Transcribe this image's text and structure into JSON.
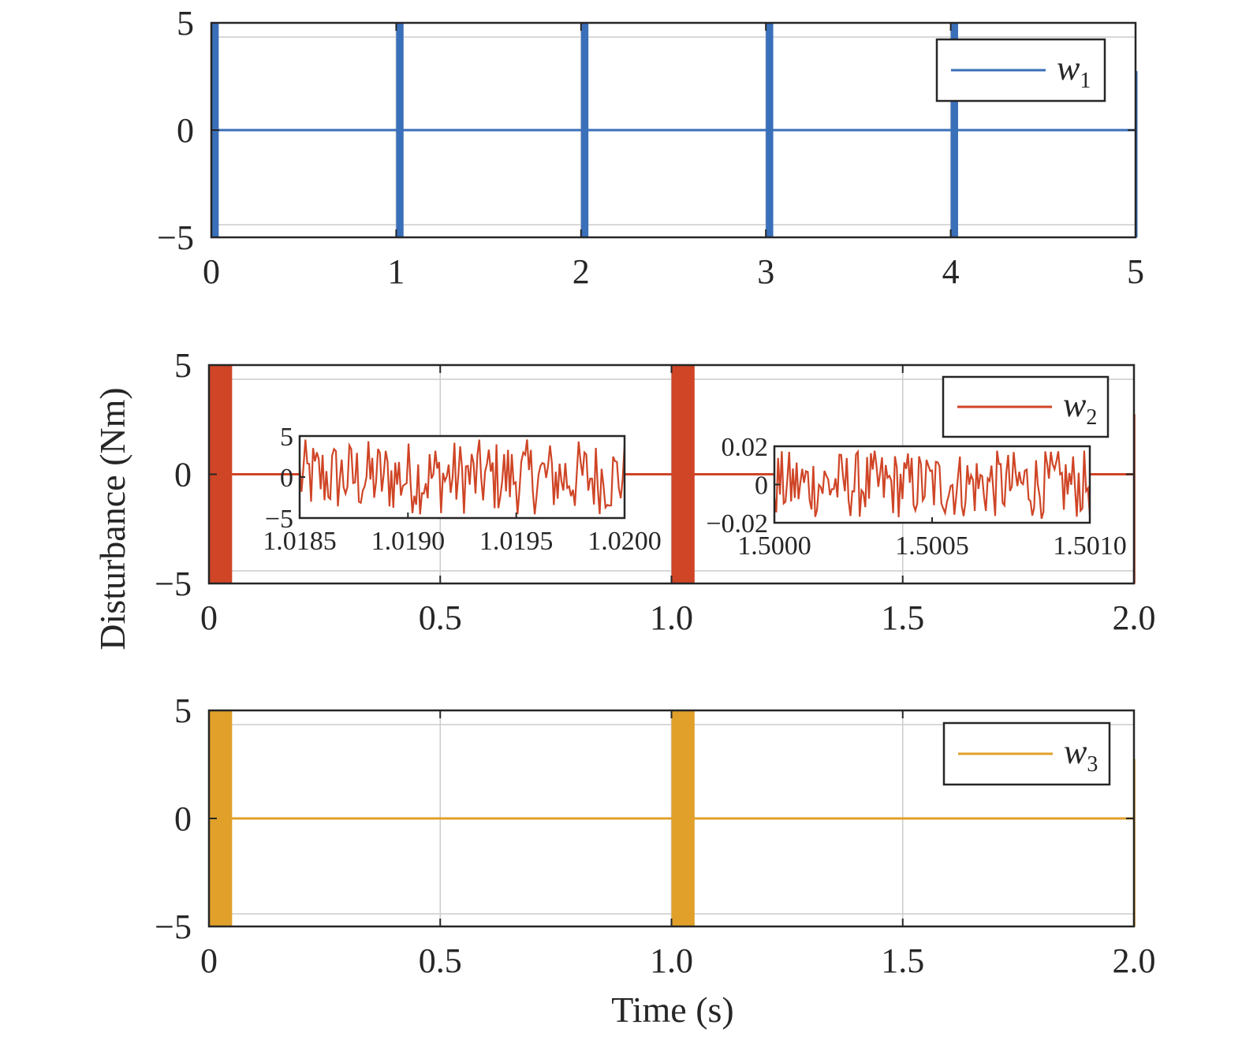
{
  "colors": {
    "w1": "#3a6fba",
    "w2": "#cf4526",
    "w3": "#e0a02a",
    "grid": "#cccccc",
    "axis": "#262626"
  },
  "figure": {
    "ylabel": "Disturbance (Nm)",
    "xlabel": "Time (s)"
  },
  "chart_data": [
    {
      "type": "line",
      "id": "w1",
      "legend": {
        "main": "w",
        "sub": "1",
        "location": "top-right"
      },
      "xlim": [
        0,
        5
      ],
      "ylim": [
        -5,
        5
      ],
      "xticks": [
        0,
        1,
        2,
        3,
        4,
        5
      ],
      "xtick_labels": [
        "0",
        "1",
        "2",
        "3",
        "4",
        "5"
      ],
      "yticks": [
        -5,
        0,
        5
      ],
      "ytick_labels": [
        "−5",
        "0",
        "5"
      ],
      "grid": true,
      "amplitude": 5,
      "burst_starts": [
        0,
        1,
        2,
        3,
        4,
        5
      ],
      "burst_width": 0.04,
      "baseline": 0,
      "series": [
        {
          "name": "w1"
        }
      ]
    },
    {
      "type": "line",
      "id": "w2",
      "legend": {
        "main": "w",
        "sub": "2",
        "location": "top-right"
      },
      "xlim": [
        0,
        2
      ],
      "ylim": [
        -5,
        5
      ],
      "xticks": [
        0,
        0.5,
        1.0,
        1.5,
        2.0
      ],
      "xtick_labels": [
        "0",
        "0.5",
        "1.0",
        "1.5",
        "2.0"
      ],
      "yticks": [
        -5,
        0,
        5
      ],
      "ytick_labels": [
        "−5",
        "0",
        "5"
      ],
      "grid": true,
      "amplitude": 5,
      "burst_starts": [
        0,
        1.0,
        2.0
      ],
      "burst_width": 0.05,
      "baseline": 0,
      "series": [
        {
          "name": "w2"
        }
      ],
      "insets": [
        {
          "xlim": [
            1.0185,
            1.02
          ],
          "ylim": [
            -5,
            5
          ],
          "xticks": [
            1.0185,
            1.019,
            1.0195,
            1.02
          ],
          "xtick_labels": [
            "1.0185",
            "1.0190",
            "1.0195",
            "1.0200"
          ],
          "yticks": [
            -5,
            0,
            5
          ],
          "ytick_labels": [
            "−5",
            "0",
            "5"
          ],
          "amplitude": 4.6
        },
        {
          "xlim": [
            1.5,
            1.501
          ],
          "ylim": [
            -0.02,
            0.02
          ],
          "xticks": [
            1.5,
            1.5005,
            1.501
          ],
          "xtick_labels": [
            "1.5000",
            "1.5005",
            "1.5010"
          ],
          "yticks": [
            -0.02,
            0,
            0.02
          ],
          "ytick_labels": [
            "−0.02",
            "0",
            "0.02"
          ],
          "amplitude": 0.018
        }
      ]
    },
    {
      "type": "line",
      "id": "w3",
      "legend": {
        "main": "w",
        "sub": "3",
        "location": "top-right"
      },
      "xlim": [
        0,
        2
      ],
      "ylim": [
        -5,
        5
      ],
      "xticks": [
        0,
        0.5,
        1.0,
        1.5,
        2.0
      ],
      "xtick_labels": [
        "0",
        "0.5",
        "1.0",
        "1.5",
        "2.0"
      ],
      "yticks": [
        -5,
        0,
        5
      ],
      "ytick_labels": [
        "−5",
        "0",
        "5"
      ],
      "grid": true,
      "amplitude": 5,
      "burst_starts": [
        0,
        1.0,
        2.0
      ],
      "burst_width": 0.05,
      "baseline": 0,
      "series": [
        {
          "name": "w3"
        }
      ]
    }
  ]
}
